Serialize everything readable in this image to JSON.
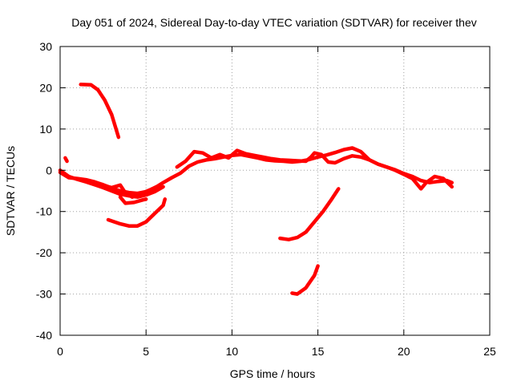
{
  "chart_data": {
    "type": "scatter",
    "title": "Day 051 of 2024, Sidereal Day-to-day VTEC variation (SDTVAR) for receiver thev",
    "xlabel": "GPS time / hours",
    "ylabel": "SDTVAR / TECUs",
    "xlim": [
      0,
      25
    ],
    "ylim": [
      -40,
      30
    ],
    "xticks": [
      0,
      5,
      10,
      15,
      20,
      25
    ],
    "yticks": [
      -40,
      -30,
      -20,
      -10,
      0,
      10,
      20,
      30
    ],
    "grid": true,
    "color": "#ff0000",
    "series": [
      {
        "name": "track-1",
        "points": [
          [
            0.0,
            -0.5
          ],
          [
            0.5,
            -1.8
          ],
          [
            1.0,
            -2.0
          ],
          [
            1.5,
            -2.3
          ],
          [
            2.0,
            -2.8
          ],
          [
            2.5,
            -3.5
          ],
          [
            3.0,
            -4.3
          ],
          [
            3.5,
            -5.0
          ],
          [
            4.0,
            -5.4
          ],
          [
            4.5,
            -5.6
          ],
          [
            5.0,
            -5.2
          ],
          [
            5.5,
            -4.3
          ],
          [
            6.0,
            -3.0
          ],
          [
            6.5,
            -1.8
          ],
          [
            7.0,
            -0.7
          ],
          [
            7.5,
            1.0
          ],
          [
            8.0,
            2.0
          ],
          [
            8.5,
            2.5
          ],
          [
            9.0,
            2.8
          ],
          [
            9.5,
            3.2
          ],
          [
            10.0,
            3.6
          ],
          [
            10.5,
            3.8
          ],
          [
            11.0,
            3.4
          ],
          [
            11.5,
            3.0
          ],
          [
            12.0,
            2.5
          ],
          [
            12.5,
            2.3
          ],
          [
            13.0,
            2.2
          ],
          [
            13.5,
            2.0
          ],
          [
            14.0,
            2.2
          ],
          [
            14.5,
            2.6
          ],
          [
            15.0,
            3.2
          ],
          [
            15.5,
            3.7
          ],
          [
            16.0,
            4.3
          ],
          [
            16.5,
            5.0
          ],
          [
            17.0,
            5.4
          ],
          [
            17.5,
            4.5
          ],
          [
            18.0,
            2.5
          ],
          [
            18.5,
            1.5
          ],
          [
            19.0,
            0.8
          ],
          [
            19.5,
            0.1
          ],
          [
            20.0,
            -0.8
          ],
          [
            20.5,
            -1.5
          ],
          [
            21.0,
            -2.5
          ],
          [
            21.5,
            -3.0
          ],
          [
            22.0,
            -2.7
          ],
          [
            22.5,
            -2.5
          ],
          [
            22.8,
            -3.0
          ]
        ]
      },
      {
        "name": "track-2",
        "points": [
          [
            0.0,
            0.0
          ],
          [
            0.5,
            -1.5
          ],
          [
            1.0,
            -2.2
          ],
          [
            1.5,
            -2.8
          ],
          [
            2.0,
            -3.5
          ],
          [
            2.5,
            -4.2
          ],
          [
            3.0,
            -5.0
          ],
          [
            3.5,
            -5.8
          ],
          [
            4.0,
            -6.2
          ],
          [
            4.5,
            -6.5
          ],
          [
            5.0,
            -6.0
          ],
          [
            5.5,
            -5.2
          ],
          [
            6.0,
            -4.0
          ]
        ]
      },
      {
        "name": "track-3",
        "points": [
          [
            2.6,
            -3.8
          ],
          [
            3.0,
            -4.2
          ],
          [
            3.5,
            -3.6
          ],
          [
            3.8,
            -5.5
          ],
          [
            4.2,
            -6.5
          ],
          [
            4.8,
            -5.5
          ],
          [
            5.2,
            -4.8
          ],
          [
            5.6,
            -4.0
          ]
        ]
      },
      {
        "name": "track-4",
        "points": [
          [
            3.5,
            -6.5
          ],
          [
            3.8,
            -8.0
          ],
          [
            4.3,
            -7.8
          ],
          [
            4.8,
            -7.2
          ],
          [
            5.0,
            -7.0
          ]
        ]
      },
      {
        "name": "track-5",
        "points": [
          [
            0.3,
            3.0
          ],
          [
            0.4,
            2.2
          ]
        ]
      },
      {
        "name": "track-6",
        "points": [
          [
            1.2,
            20.8
          ],
          [
            1.8,
            20.7
          ],
          [
            2.2,
            19.5
          ],
          [
            2.6,
            17.0
          ],
          [
            3.0,
            13.5
          ],
          [
            3.4,
            8.0
          ]
        ]
      },
      {
        "name": "track-7",
        "points": [
          [
            2.8,
            -12.0
          ],
          [
            3.5,
            -13.0
          ],
          [
            4.0,
            -13.5
          ],
          [
            4.5,
            -13.5
          ],
          [
            5.0,
            -12.5
          ],
          [
            5.5,
            -10.5
          ],
          [
            6.0,
            -8.5
          ],
          [
            6.1,
            -7.0
          ]
        ]
      },
      {
        "name": "track-8",
        "points": [
          [
            6.8,
            0.8
          ],
          [
            7.3,
            2.2
          ],
          [
            7.8,
            4.5
          ],
          [
            8.3,
            4.2
          ],
          [
            8.8,
            3.0
          ],
          [
            9.3,
            3.8
          ],
          [
            9.8,
            3.0
          ],
          [
            10.3,
            4.8
          ],
          [
            10.8,
            4.0
          ],
          [
            11.3,
            3.6
          ],
          [
            11.8,
            3.2
          ],
          [
            12.3,
            2.8
          ],
          [
            12.8,
            2.5
          ],
          [
            13.3,
            2.4
          ],
          [
            13.8,
            2.3
          ],
          [
            14.3,
            2.2
          ],
          [
            14.6,
            3.2
          ],
          [
            14.8,
            4.2
          ],
          [
            15.2,
            3.8
          ],
          [
            15.6,
            2.0
          ],
          [
            16.0,
            1.8
          ],
          [
            16.5,
            2.8
          ],
          [
            17.0,
            3.5
          ],
          [
            17.5,
            3.2
          ],
          [
            18.0,
            2.5
          ],
          [
            18.5,
            1.5
          ],
          [
            19.0,
            0.8
          ],
          [
            19.5,
            0.0
          ],
          [
            20.0,
            -1.0
          ],
          [
            20.5,
            -2.0
          ],
          [
            21.0,
            -4.5
          ],
          [
            21.3,
            -3.0
          ],
          [
            21.8,
            -1.5
          ],
          [
            22.3,
            -2.0
          ],
          [
            22.8,
            -4.0
          ]
        ]
      },
      {
        "name": "track-9",
        "points": [
          [
            12.8,
            -16.5
          ],
          [
            13.3,
            -16.8
          ],
          [
            13.8,
            -16.3
          ],
          [
            14.3,
            -15.0
          ],
          [
            14.8,
            -12.5
          ],
          [
            15.3,
            -10.0
          ],
          [
            15.8,
            -7.0
          ],
          [
            16.2,
            -4.5
          ]
        ]
      },
      {
        "name": "track-10",
        "points": [
          [
            13.5,
            -29.8
          ],
          [
            13.8,
            -30.0
          ],
          [
            14.3,
            -28.5
          ],
          [
            14.8,
            -25.5
          ],
          [
            15.0,
            -23.2
          ]
        ]
      }
    ]
  }
}
